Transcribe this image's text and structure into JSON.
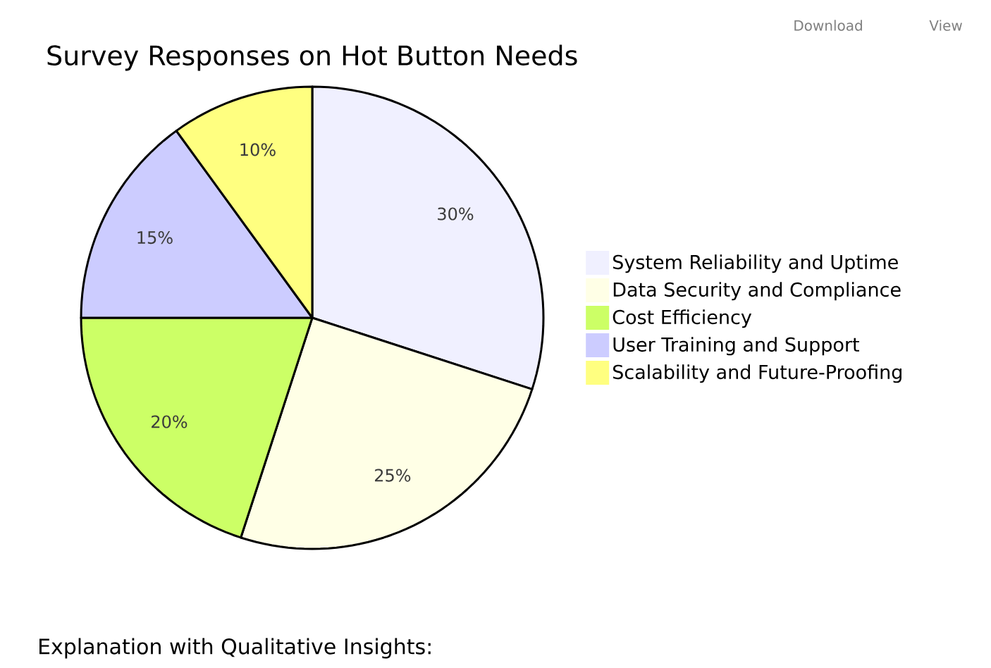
{
  "chart_data": {
    "type": "pie",
    "title": "Survey Responses on Hot Button Needs",
    "categories": [
      "System Reliability and Uptime",
      "Data Security and Compliance",
      "Cost Efficiency",
      "User Training and Support",
      "Scalability and Future-Proofing"
    ],
    "values": [
      30,
      25,
      20,
      15,
      10
    ],
    "colors": [
      "#f0f0ff",
      "#ffffe6",
      "#ccff66",
      "#ccccff",
      "#ffff80"
    ],
    "value_labels": [
      "30%",
      "25%",
      "20%",
      "15%",
      "10%"
    ],
    "legend": "right",
    "annotations": [
      "Download",
      "View",
      "Explanation with Qualitative Insights:"
    ]
  }
}
